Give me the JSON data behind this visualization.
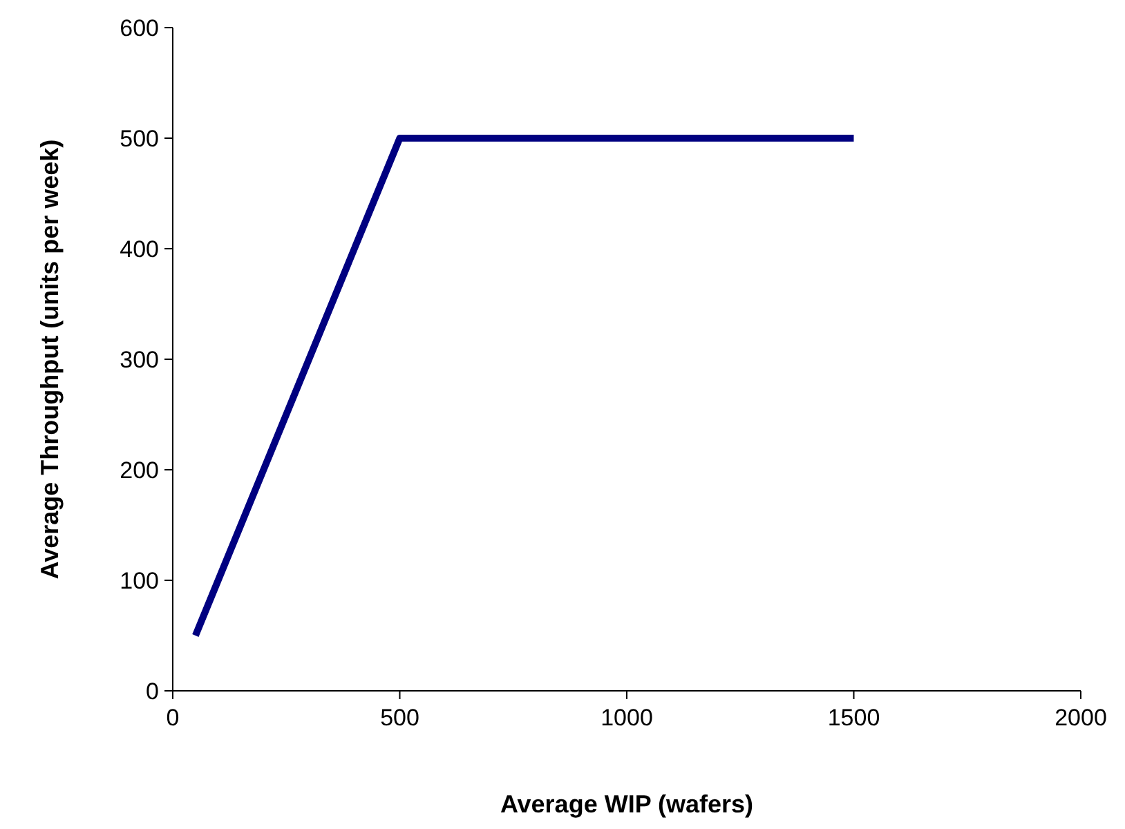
{
  "chart_data": {
    "type": "line",
    "xlabel": "Average WIP (wafers)",
    "ylabel": "Average Throughput (units per week)",
    "series": [
      {
        "color": "#000080",
        "x": [
          50,
          500,
          1500
        ],
        "values": [
          50,
          500,
          500
        ]
      }
    ],
    "xlim": [
      0,
      2000
    ],
    "xticks": [
      0,
      500,
      1000,
      1500,
      2000
    ],
    "ylim": [
      0,
      600
    ],
    "yticks": [
      0,
      100,
      200,
      300,
      400,
      500,
      600
    ],
    "grid": false,
    "marker": "none",
    "line_style": "solid"
  }
}
